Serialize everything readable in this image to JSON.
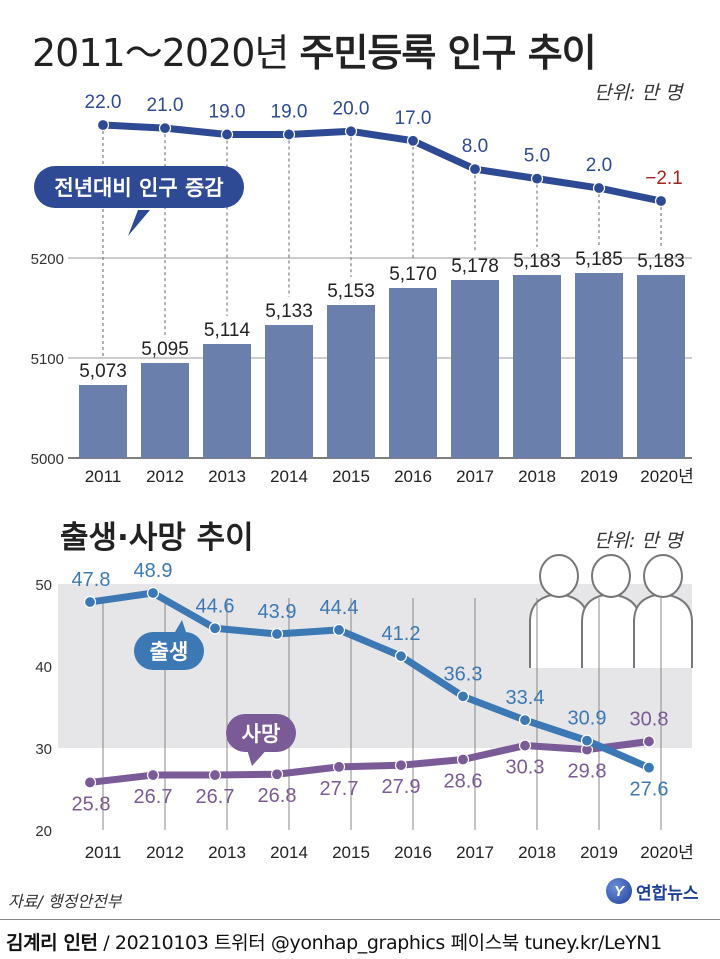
{
  "header": {
    "title_years": "2011～2020년",
    "title_main": "주민등록 인구 추이",
    "unit": "단위: 만 명"
  },
  "section2": {
    "title": "출생·사망 추이",
    "unit": "단위: 만 명"
  },
  "source": "자료/ 행정안전부",
  "logo": {
    "mark": "Y",
    "text": "연합뉴스"
  },
  "footer": {
    "author": "김계리 인턴",
    "rest": " / 20210103  트위터 @yonhap_graphics  페이스북 tuney.kr/LeYN1"
  },
  "chart_data": [
    {
      "type": "line",
      "label": "전년대비 인구 증감",
      "x": [
        "2011",
        "2012",
        "2013",
        "2014",
        "2015",
        "2016",
        "2017",
        "2018",
        "2019",
        "2020"
      ],
      "values": [
        22.0,
        21.0,
        19.0,
        19.0,
        20.0,
        17.0,
        8.0,
        5.0,
        2.0,
        -2.1
      ],
      "value_labels": [
        "22.0",
        "21.0",
        "19.0",
        "19.0",
        "20.0",
        "17.0",
        "8.0",
        "5.0",
        "2.0",
        "−2.1"
      ],
      "colors": {
        "line": "#2f4a94",
        "negative_label": "#a3231d"
      }
    },
    {
      "type": "bar",
      "categories": [
        "2011",
        "2012",
        "2013",
        "2014",
        "2015",
        "2016",
        "2017",
        "2018",
        "2019",
        "2020년"
      ],
      "values": [
        5073,
        5095,
        5114,
        5133,
        5153,
        5170,
        5178,
        5183,
        5185,
        5183
      ],
      "value_labels": [
        "5,073",
        "5,095",
        "5,114",
        "5,133",
        "5,153",
        "5,170",
        "5,178",
        "5,183",
        "5,185",
        "5,183"
      ],
      "yticks": [
        5000,
        5100,
        5200
      ],
      "ylim": [
        5000,
        5200
      ],
      "grid": true,
      "colors": {
        "bar": "#6b7fad"
      }
    },
    {
      "type": "line",
      "categories": [
        "2011",
        "2012",
        "2013",
        "2014",
        "2015",
        "2016",
        "2017",
        "2018",
        "2019",
        "2020년"
      ],
      "yticks": [
        20,
        30,
        40,
        50
      ],
      "ylim": [
        20,
        50
      ],
      "series": [
        {
          "name": "출생",
          "values": [
            47.8,
            48.9,
            44.6,
            43.9,
            44.4,
            41.2,
            36.3,
            33.4,
            30.9,
            27.6
          ],
          "labels": [
            "47.8",
            "48.9",
            "44.6",
            "43.9",
            "44.4",
            "41.2",
            "36.3",
            "33.4",
            "30.9",
            "27.6"
          ],
          "color": "#3c79b4"
        },
        {
          "name": "사망",
          "values": [
            25.8,
            26.7,
            26.7,
            26.8,
            27.7,
            27.9,
            28.6,
            30.3,
            29.8,
            30.8
          ],
          "labels": [
            "25.8",
            "26.7",
            "26.7",
            "26.8",
            "27.7",
            "27.9",
            "28.6",
            "30.3",
            "29.8",
            "30.8"
          ],
          "color": "#7b5b97"
        }
      ],
      "bands": [
        [
          30,
          40
        ],
        [
          40,
          50
        ]
      ]
    }
  ]
}
